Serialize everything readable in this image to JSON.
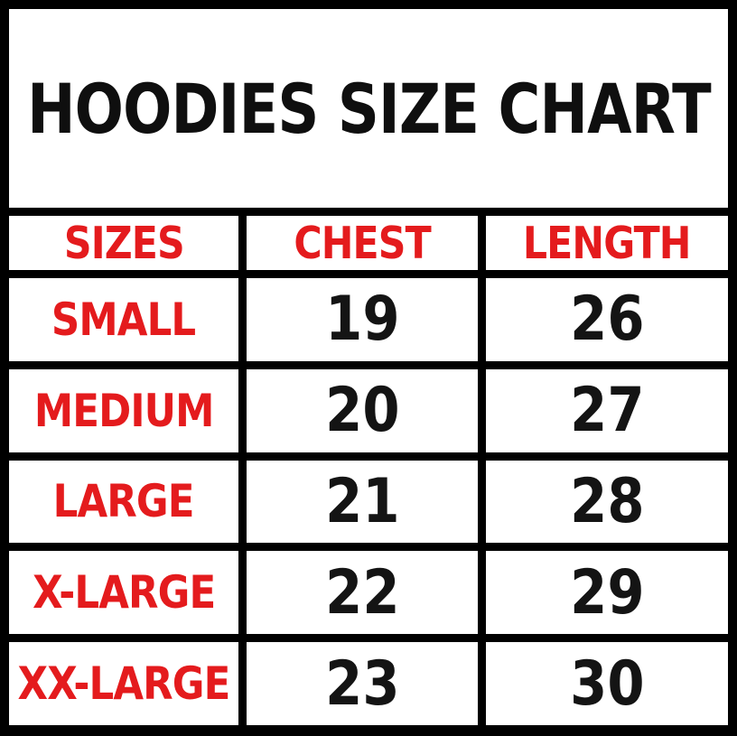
{
  "page": {
    "title": "HOODIES SIZE CHART"
  },
  "colors": {
    "accent_red": "#e41b1d",
    "text_black": "#141414",
    "grid_black": "#000000",
    "cell_white": "#ffffff"
  },
  "chart_data": {
    "type": "table",
    "title": "HOODIES SIZE CHART",
    "columns": [
      "SIZES",
      "CHEST",
      "LENGTH"
    ],
    "rows": [
      [
        "SMALL",
        19,
        26
      ],
      [
        "MEDIUM",
        20,
        27
      ],
      [
        "LARGE",
        21,
        28
      ],
      [
        "X-LARGE",
        22,
        29
      ],
      [
        "XX-LARGE",
        23,
        30
      ]
    ]
  },
  "table": {
    "headers": [
      "SIZES",
      "CHEST",
      "LENGTH"
    ],
    "rows": [
      {
        "size": "SMALL",
        "chest": "19",
        "length": "26"
      },
      {
        "size": "MEDIUM",
        "chest": "20",
        "length": "27"
      },
      {
        "size": "LARGE",
        "chest": "21",
        "length": "28"
      },
      {
        "size": "X-LARGE",
        "chest": "22",
        "length": "29"
      },
      {
        "size": "XX-LARGE",
        "chest": "23",
        "length": "30"
      }
    ]
  }
}
